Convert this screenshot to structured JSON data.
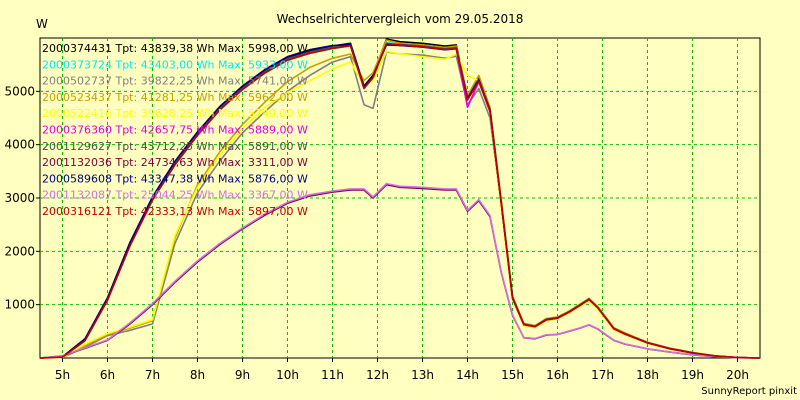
{
  "chart_data": {
    "type": "line",
    "title": "Wechselrichtervergleich vom 29.05.2018",
    "ylabel": "W",
    "xlabel": "",
    "xlim": [
      4.5,
      20.5
    ],
    "ylim": [
      0,
      6000
    ],
    "x_ticks": [
      5,
      6,
      7,
      8,
      9,
      10,
      11,
      12,
      13,
      14,
      15,
      16,
      17,
      18,
      19,
      20
    ],
    "x_tick_labels": [
      "5h",
      "6h",
      "7h",
      "8h",
      "9h",
      "10h",
      "11h",
      "12h",
      "13h",
      "14h",
      "15h",
      "16h",
      "17h",
      "18h",
      "19h",
      "20h"
    ],
    "y_ticks": [
      1000,
      2000,
      3000,
      4000,
      5000
    ],
    "grid": true,
    "legend_position": "top-left",
    "footer": "SunnyReport pinxit",
    "x": [
      4.5,
      5.0,
      5.5,
      6.0,
      6.5,
      7.0,
      7.5,
      8.0,
      8.5,
      9.0,
      9.5,
      10.0,
      10.5,
      11.0,
      11.4,
      11.7,
      11.9,
      12.2,
      12.5,
      13.0,
      13.5,
      13.75,
      14.0,
      14.25,
      14.5,
      14.75,
      15.0,
      15.25,
      15.5,
      15.75,
      16.0,
      16.25,
      16.5,
      16.7,
      16.9,
      17.25,
      17.5,
      18.0,
      18.5,
      19.0,
      19.5,
      20.0,
      20.5
    ],
    "series": [
      {
        "name": "2000374431 Tpt: 43839,38 Wh Max: 5998,00 W",
        "color": "#000000",
        "values": [
          0,
          20,
          350,
          1120,
          2150,
          3010,
          3670,
          4220,
          4700,
          5080,
          5390,
          5630,
          5760,
          5850,
          5900,
          5100,
          5300,
          5980,
          5930,
          5900,
          5850,
          5870,
          4900,
          5250,
          4680,
          2930,
          1150,
          640,
          600,
          730,
          760,
          870,
          1000,
          1110,
          950,
          560,
          460,
          290,
          180,
          100,
          40,
          10,
          0
        ]
      },
      {
        "name": "2000373724 Tpt: 43403,00 Wh Max: 5933,00 W",
        "color": "#00e8f0",
        "values": [
          0,
          15,
          320,
          1080,
          2100,
          2960,
          3620,
          4170,
          4650,
          5030,
          5340,
          5580,
          5710,
          5800,
          5850,
          5050,
          5250,
          5920,
          5870,
          5840,
          5790,
          5810,
          4850,
          5200,
          4640,
          2900,
          1130,
          630,
          590,
          720,
          750,
          860,
          990,
          1100,
          940,
          550,
          450,
          285,
          175,
          95,
          38,
          9,
          0
        ]
      },
      {
        "name": "2000502737 Tpt: 39822,25 Wh Max: 5741,00 W",
        "color": "#808080",
        "values": [
          0,
          10,
          200,
          420,
          520,
          640,
          2150,
          3100,
          3700,
          4220,
          4620,
          5000,
          5300,
          5550,
          5650,
          4750,
          4680,
          5740,
          5700,
          5680,
          5620,
          5660,
          4750,
          5050,
          4500,
          2850,
          1100,
          620,
          580,
          710,
          740,
          850,
          980,
          1080,
          920,
          540,
          440,
          280,
          170,
          90,
          35,
          8,
          0
        ]
      },
      {
        "name": "2000523437 Tpt: 41281,25 Wh Max: 5962,00 W",
        "color": "#c8a000",
        "values": [
          0,
          12,
          230,
          440,
          560,
          700,
          2250,
          3250,
          3870,
          4380,
          4800,
          5180,
          5450,
          5620,
          5700,
          5200,
          5350,
          5960,
          5900,
          5870,
          5820,
          5850,
          4920,
          5300,
          4700,
          2950,
          1160,
          650,
          610,
          740,
          770,
          880,
          1010,
          1120,
          960,
          570,
          470,
          295,
          185,
          105,
          42,
          11,
          0
        ]
      },
      {
        "name": "2000522416 Tpt: 39628,25 Wh Max: 5749,00 W",
        "color": "#ffff00",
        "values": [
          0,
          12,
          260,
          460,
          580,
          720,
          2300,
          3200,
          3800,
          4300,
          4700,
          4980,
          5200,
          5420,
          5550,
          5100,
          5200,
          5749,
          5700,
          5650,
          5600,
          5700,
          5300,
          5200,
          4600,
          2800,
          1100,
          600,
          570,
          700,
          730,
          840,
          970,
          1070,
          910,
          530,
          430,
          275,
          165,
          88,
          33,
          7,
          0
        ]
      },
      {
        "name": "2000376360 Tpt: 42657,75 Wh Max: 5889,00 W",
        "color": "#e000e0",
        "values": [
          0,
          18,
          330,
          1090,
          2110,
          2970,
          3630,
          4180,
          4660,
          5040,
          5350,
          5590,
          5720,
          5810,
          5860,
          5060,
          5260,
          5889,
          5860,
          5830,
          5780,
          5800,
          4700,
          5180,
          4620,
          2890,
          1120,
          625,
          585,
          715,
          745,
          855,
          985,
          1095,
          935,
          548,
          448,
          283,
          173,
          93,
          37,
          9,
          0
        ]
      },
      {
        "name": "2001129627 Tpt: 43712,25 Wh Max: 5891,00 W",
        "color": "#505050",
        "values": [
          0,
          19,
          340,
          1100,
          2130,
          2990,
          3650,
          4200,
          4680,
          5060,
          5370,
          5610,
          5740,
          5830,
          5880,
          5080,
          5280,
          5891,
          5880,
          5850,
          5800,
          5820,
          4880,
          5230,
          4660,
          2910,
          1140,
          635,
          595,
          725,
          755,
          865,
          995,
          1105,
          945,
          555,
          455,
          288,
          178,
          98,
          39,
          10,
          0
        ]
      },
      {
        "name": "2001132036 Tpt: 24734,63 Wh Max: 3311,00 W",
        "color": "#800040",
        "values": [
          0,
          40,
          180,
          330,
          640,
          1000,
          1420,
          1800,
          2130,
          2420,
          2680,
          2900,
          3040,
          3110,
          3150,
          3150,
          3000,
          3250,
          3200,
          3180,
          3150,
          3150,
          2750,
          2950,
          2650,
          1600,
          800,
          380,
          360,
          430,
          440,
          500,
          560,
          620,
          540,
          330,
          260,
          170,
          110,
          60,
          25,
          5,
          0
        ]
      },
      {
        "name": "2000589608 Tpt: 43347,38 Wh Max: 5876,00 W",
        "color": "#000080",
        "values": [
          0,
          22,
          360,
          1130,
          2170,
          3020,
          3690,
          4240,
          4720,
          5100,
          5410,
          5650,
          5780,
          5860,
          5876,
          5090,
          5290,
          5870,
          5860,
          5830,
          5780,
          5800,
          4860,
          5210,
          4640,
          2900,
          1130,
          630,
          590,
          720,
          750,
          860,
          990,
          1100,
          940,
          550,
          450,
          285,
          175,
          95,
          38,
          9,
          0
        ]
      },
      {
        "name": "2001132087 Tpt: 25044,25 Wh Max: 3367,00 W",
        "color": "#d070e0",
        "values": [
          0,
          42,
          190,
          340,
          660,
          1020,
          1440,
          1820,
          2150,
          2440,
          2700,
          2920,
          3060,
          3130,
          3170,
          3170,
          3020,
          3270,
          3220,
          3200,
          3170,
          3170,
          2770,
          2970,
          2670,
          1610,
          810,
          385,
          365,
          435,
          445,
          505,
          565,
          625,
          545,
          335,
          265,
          172,
          112,
          62,
          26,
          5,
          0
        ]
      },
      {
        "name": "2000316121 Tpt: 42333,13 Wh Max: 5897,00 W",
        "color": "#c00000",
        "values": [
          0,
          17,
          325,
          1085,
          2105,
          2965,
          3625,
          4175,
          4655,
          5035,
          5345,
          5585,
          5715,
          5805,
          5855,
          5055,
          5255,
          5897,
          5865,
          5835,
          5785,
          5805,
          4840,
          5190,
          4630,
          2895,
          1125,
          628,
          588,
          718,
          748,
          858,
          988,
          1098,
          938,
          552,
          452,
          284,
          174,
          94,
          37,
          9,
          0
        ]
      }
    ]
  }
}
